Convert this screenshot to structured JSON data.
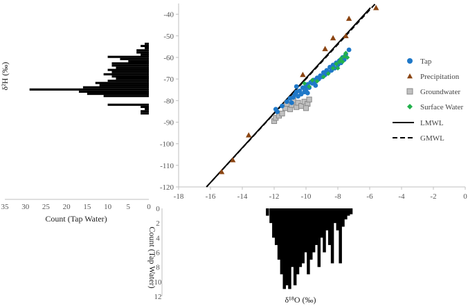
{
  "chart_data": [
    {
      "type": "scatter",
      "role": "main",
      "xlabel": "δ¹⁸O (‰)",
      "ylabel": "δ²H (‰)",
      "xlim": [
        -18,
        0
      ],
      "ylim": [
        -120,
        -35
      ],
      "x_ticks": [
        -18,
        -16,
        -14,
        -12,
        -10,
        -8,
        -6,
        -4,
        -2,
        0
      ],
      "y_ticks": [
        -40,
        -50,
        -60,
        -70,
        -80,
        -90,
        -100,
        -110,
        -120
      ],
      "x_tick_labels": [
        "-18",
        "-16",
        "-14",
        "-12",
        "-10",
        "-8",
        "-6",
        "-4",
        "-2",
        "0"
      ],
      "y_tick_labels": [
        "-40",
        "-50",
        "-60",
        "-70",
        "-80",
        "-90",
        "-100",
        "-110",
        "-120"
      ],
      "grid": false,
      "legend_position": "right",
      "series": [
        {
          "name": "Tap",
          "marker": "circle",
          "color": "#1f78c8",
          "points": [
            [
              -11.9,
              -84.0
            ],
            [
              -11.8,
              -85.2
            ],
            [
              -11.5,
              -82.5
            ],
            [
              -11.2,
              -80.5
            ],
            [
              -11.0,
              -79.0
            ],
            [
              -10.9,
              -81.0
            ],
            [
              -10.8,
              -78.5
            ],
            [
              -10.7,
              -77.2
            ],
            [
              -10.6,
              -76.0
            ],
            [
              -10.5,
              -78.0
            ],
            [
              -10.4,
              -75.5
            ],
            [
              -10.3,
              -77.0
            ],
            [
              -10.2,
              -74.0
            ],
            [
              -10.1,
              -76.0
            ],
            [
              -10.0,
              -73.5
            ],
            [
              -10.0,
              -75.5
            ],
            [
              -9.9,
              -72.5
            ],
            [
              -9.8,
              -74.0
            ],
            [
              -9.7,
              -71.5
            ],
            [
              -9.6,
              -72.0
            ],
            [
              -9.5,
              -70.5
            ],
            [
              -9.4,
              -71.0
            ],
            [
              -9.3,
              -69.5
            ],
            [
              -9.2,
              -70.0
            ],
            [
              -9.1,
              -68.5
            ],
            [
              -9.0,
              -69.0
            ],
            [
              -8.9,
              -67.0
            ],
            [
              -8.8,
              -68.0
            ],
            [
              -8.7,
              -66.0
            ],
            [
              -8.6,
              -67.0
            ],
            [
              -8.5,
              -64.5
            ],
            [
              -8.4,
              -66.0
            ],
            [
              -8.3,
              -63.5
            ],
            [
              -8.2,
              -65.0
            ],
            [
              -8.1,
              -62.5
            ],
            [
              -8.0,
              -63.5
            ],
            [
              -7.9,
              -61.5
            ],
            [
              -7.8,
              -62.5
            ],
            [
              -7.7,
              -60.0
            ],
            [
              -7.6,
              -61.0
            ],
            [
              -7.5,
              -58.5
            ],
            [
              -7.3,
              -56.5
            ],
            [
              -10.6,
              -73.5
            ],
            [
              -9.9,
              -76.5
            ],
            [
              -9.4,
              -73.0
            ]
          ]
        },
        {
          "name": "Precipitation",
          "marker": "triangle",
          "color": "#8b4513",
          "points": [
            [
              -15.3,
              -113.0
            ],
            [
              -14.6,
              -107.5
            ],
            [
              -13.6,
              -96.0
            ],
            [
              -10.2,
              -68.0
            ],
            [
              -8.8,
              -56.0
            ],
            [
              -8.3,
              -51.0
            ],
            [
              -7.5,
              -50.0
            ],
            [
              -7.3,
              -42.0
            ],
            [
              -5.6,
              -37.0
            ]
          ]
        },
        {
          "name": "Groundwater",
          "marker": "square",
          "color": "#c0c0c0",
          "stroke": "#888888",
          "points": [
            [
              -12.0,
              -89.5
            ],
            [
              -11.9,
              -88.0
            ],
            [
              -11.7,
              -87.0
            ],
            [
              -11.5,
              -86.0
            ],
            [
              -11.3,
              -83.5
            ],
            [
              -11.2,
              -81.5
            ],
            [
              -11.0,
              -84.0
            ],
            [
              -10.9,
              -82.0
            ],
            [
              -10.8,
              -80.0
            ],
            [
              -10.6,
              -83.0
            ],
            [
              -10.5,
              -81.0
            ],
            [
              -10.3,
              -82.5
            ],
            [
              -10.1,
              -80.5
            ],
            [
              -9.9,
              -81.5
            ],
            [
              -9.8,
              -79.5
            ],
            [
              -10.0,
              -83.5
            ]
          ]
        },
        {
          "name": "Surface Water",
          "marker": "diamond",
          "color": "#22b14c",
          "points": [
            [
              -10.1,
              -72.0
            ],
            [
              -9.8,
              -73.5
            ],
            [
              -9.6,
              -70.5
            ],
            [
              -9.3,
              -71.0
            ],
            [
              -8.9,
              -69.0
            ],
            [
              -8.6,
              -67.5
            ],
            [
              -8.3,
              -65.0
            ],
            [
              -8.1,
              -63.0
            ],
            [
              -7.9,
              -62.0
            ],
            [
              -7.8,
              -60.5
            ],
            [
              -7.6,
              -59.5
            ],
            [
              -7.5,
              -58.0
            ],
            [
              -7.4,
              -60.0
            ],
            [
              -8.0,
              -65.0
            ],
            [
              -7.7,
              -62.0
            ]
          ]
        }
      ],
      "lines": [
        {
          "name": "LMWL",
          "style": "solid",
          "color": "#000000",
          "from": [
            -16.25,
            -120.0
          ],
          "to": [
            -5.95,
            -37.0
          ]
        },
        {
          "name": "GMWL",
          "style": "dashed",
          "color": "#000000",
          "from": [
            -16.25,
            -120.0
          ],
          "to": [
            -5.63,
            -35.0
          ]
        }
      ]
    },
    {
      "type": "bar",
      "role": "left-histogram",
      "orientation": "horizontal",
      "xlabel": "Count (Tap Water)",
      "ylabel": "δ²H (‰)",
      "x_ticks": [
        35,
        30,
        25,
        20,
        15,
        10,
        5,
        0
      ],
      "x_tick_labels": [
        "35",
        "30",
        "25",
        "20",
        "15",
        "10",
        "5",
        "0"
      ],
      "xlim": [
        0,
        35
      ],
      "ylim": [
        -87,
        -52
      ],
      "color": "#000000",
      "bins": [
        {
          "y": -54,
          "count": 1
        },
        {
          "y": -55,
          "count": 2
        },
        {
          "y": -56,
          "count": 1
        },
        {
          "y": -57,
          "count": 3
        },
        {
          "y": -58,
          "count": 3
        },
        {
          "y": -59,
          "count": 2
        },
        {
          "y": -60,
          "count": 10
        },
        {
          "y": -61,
          "count": 7
        },
        {
          "y": -62,
          "count": 5
        },
        {
          "y": -63,
          "count": 9
        },
        {
          "y": -64,
          "count": 9
        },
        {
          "y": -65,
          "count": 8
        },
        {
          "y": -66,
          "count": 10
        },
        {
          "y": -67,
          "count": 9
        },
        {
          "y": -68,
          "count": 11
        },
        {
          "y": -69,
          "count": 9
        },
        {
          "y": -70,
          "count": 8
        },
        {
          "y": -71,
          "count": 10
        },
        {
          "y": -72,
          "count": 13
        },
        {
          "y": -73,
          "count": 12
        },
        {
          "y": -74,
          "count": 16
        },
        {
          "y": -75,
          "count": 29
        },
        {
          "y": -76,
          "count": 17
        },
        {
          "y": -77,
          "count": 15
        },
        {
          "y": -78,
          "count": 11
        },
        {
          "y": -79,
          "count": 0
        },
        {
          "y": -80,
          "count": 0
        },
        {
          "y": -81,
          "count": 0
        },
        {
          "y": -82,
          "count": 10
        },
        {
          "y": -83,
          "count": 2
        },
        {
          "y": -84,
          "count": 1
        },
        {
          "y": -85,
          "count": 2
        },
        {
          "y": -86,
          "count": 2
        }
      ]
    },
    {
      "type": "bar",
      "role": "bottom-histogram",
      "orientation": "vertical",
      "xlabel": "δ¹⁸O (‰)",
      "ylabel": "Count (Tap Water)",
      "y_ticks": [
        0,
        2,
        4,
        6,
        8,
        10,
        12
      ],
      "y_tick_labels": [
        "0",
        "2",
        "4",
        "6",
        "8",
        "10",
        "12"
      ],
      "ylim": [
        0,
        12
      ],
      "xlim": [
        -12.3,
        -7.2
      ],
      "color": "#000000",
      "bins": [
        {
          "x": -12.1,
          "count": 1
        },
        {
          "x": -11.9,
          "count": 2
        },
        {
          "x": -11.75,
          "count": 4
        },
        {
          "x": -11.6,
          "count": 5
        },
        {
          "x": -11.45,
          "count": 7
        },
        {
          "x": -11.3,
          "count": 9
        },
        {
          "x": -11.15,
          "count": 11
        },
        {
          "x": -11.0,
          "count": 10.5
        },
        {
          "x": -10.85,
          "count": 11
        },
        {
          "x": -10.7,
          "count": 8
        },
        {
          "x": -10.55,
          "count": 10.5
        },
        {
          "x": -10.4,
          "count": 9
        },
        {
          "x": -10.25,
          "count": 8
        },
        {
          "x": -10.1,
          "count": 7.5
        },
        {
          "x": -9.95,
          "count": 6
        },
        {
          "x": -9.8,
          "count": 9
        },
        {
          "x": -9.65,
          "count": 7
        },
        {
          "x": -9.5,
          "count": 6
        },
        {
          "x": -9.35,
          "count": 5
        },
        {
          "x": -9.2,
          "count": 8
        },
        {
          "x": -9.05,
          "count": 4
        },
        {
          "x": -8.9,
          "count": 6
        },
        {
          "x": -8.75,
          "count": 3
        },
        {
          "x": -8.6,
          "count": 5
        },
        {
          "x": -8.45,
          "count": 7.5
        },
        {
          "x": -8.3,
          "count": 2
        },
        {
          "x": -8.15,
          "count": 3
        },
        {
          "x": -8.0,
          "count": 7.5
        },
        {
          "x": -7.85,
          "count": 2.5
        },
        {
          "x": -7.7,
          "count": 1.5
        },
        {
          "x": -7.55,
          "count": 1
        },
        {
          "x": -7.4,
          "count": 0.8
        }
      ]
    }
  ]
}
